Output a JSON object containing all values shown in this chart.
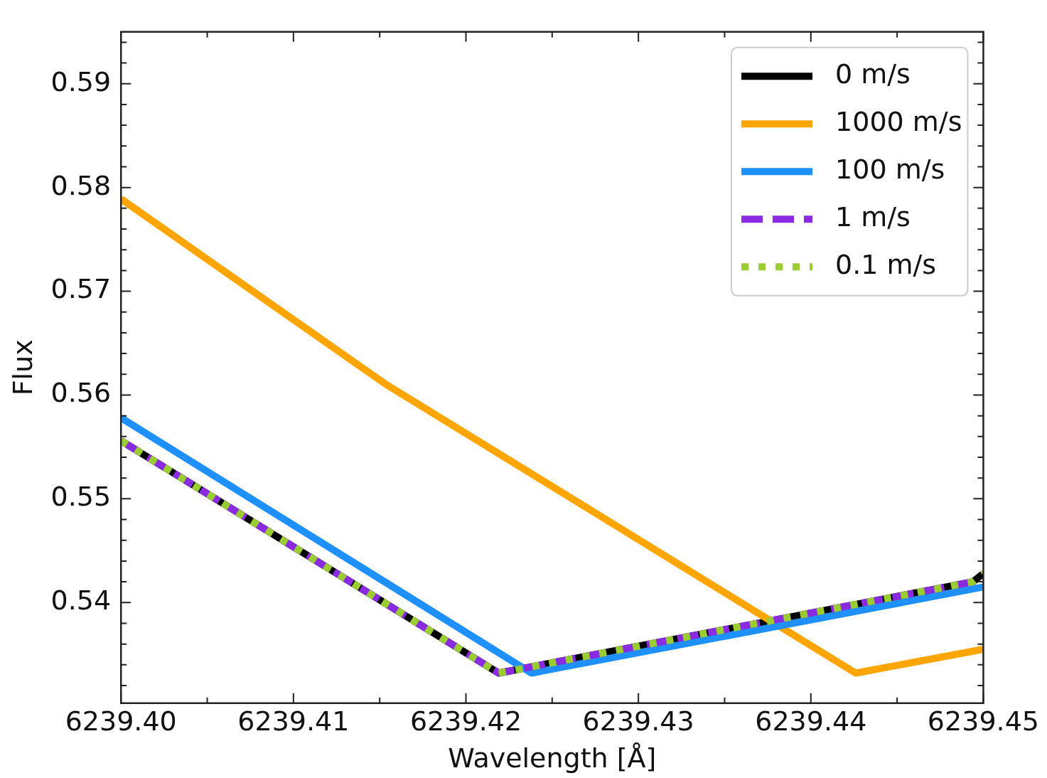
{
  "chart_data": {
    "type": "line",
    "xlabel": "Wavelength [Å]",
    "ylabel": "Flux",
    "xlim": [
      6239.4,
      6239.45
    ],
    "ylim": [
      0.5303,
      0.595
    ],
    "xticks": [
      {
        "value": 6239.4,
        "label": "6239.40"
      },
      {
        "value": 6239.41,
        "label": "6239.41"
      },
      {
        "value": 6239.42,
        "label": "6239.42"
      },
      {
        "value": 6239.43,
        "label": "6239.43"
      },
      {
        "value": 6239.44,
        "label": "6239.44"
      },
      {
        "value": 6239.45,
        "label": "6239.45"
      }
    ],
    "yticks": [
      0.54,
      0.55,
      0.56,
      0.57,
      0.58,
      0.59
    ],
    "legend": "top right",
    "grid": false,
    "series": [
      {
        "name": "0 m/s",
        "color": "#000000",
        "line_style": "solid",
        "x": [
          6239.4,
          6239.4219,
          6239.4494,
          6239.45
        ],
        "values": [
          0.5556,
          0.5332,
          0.542,
          0.5428
        ]
      },
      {
        "name": "1000 m/s",
        "color": "#ffa500",
        "line_style": "solid",
        "x": [
          6239.4,
          6239.4153,
          6239.4426,
          6239.45
        ],
        "values": [
          0.5789,
          0.5611,
          0.5332,
          0.5355
        ]
      },
      {
        "name": "100 m/s",
        "color": "#1e90ff",
        "line_style": "solid",
        "x": [
          6239.4,
          6239.4238,
          6239.45
        ],
        "values": [
          0.5578,
          0.5332,
          0.5415
        ]
      },
      {
        "name": "1 m/s",
        "color": "#8a2be2",
        "line_style": "dashed",
        "x": [
          6239.4,
          6239.4219,
          6239.4494,
          6239.45
        ],
        "values": [
          0.5556,
          0.5332,
          0.542,
          0.5428
        ]
      },
      {
        "name": "0.1 m/s",
        "color": "#9acd32",
        "line_style": "dotted",
        "x": [
          6239.4,
          6239.4219,
          6239.4494,
          6239.45
        ],
        "values": [
          0.5556,
          0.5332,
          0.542,
          0.5428
        ]
      }
    ]
  }
}
